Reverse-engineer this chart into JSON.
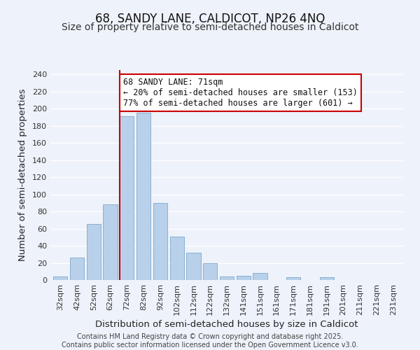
{
  "title": "68, SANDY LANE, CALDICOT, NP26 4NQ",
  "subtitle": "Size of property relative to semi-detached houses in Caldicot",
  "xlabel": "Distribution of semi-detached houses by size in Caldicot",
  "ylabel": "Number of semi-detached properties",
  "bar_labels": [
    "32sqm",
    "42sqm",
    "52sqm",
    "62sqm",
    "72sqm",
    "82sqm",
    "92sqm",
    "102sqm",
    "112sqm",
    "122sqm",
    "132sqm",
    "141sqm",
    "151sqm",
    "161sqm",
    "171sqm",
    "181sqm",
    "191sqm",
    "201sqm",
    "211sqm",
    "221sqm",
    "231sqm"
  ],
  "bar_values": [
    4,
    26,
    65,
    88,
    191,
    195,
    90,
    51,
    32,
    20,
    4,
    5,
    8,
    0,
    3,
    0,
    3,
    0,
    0,
    0,
    0
  ],
  "bar_color": "#b8d0ea",
  "bar_edge_color": "#8ab0d0",
  "highlight_line_color": "#cc0000",
  "annotation_line1": "68 SANDY LANE: 71sqm",
  "annotation_line2": "← 20% of semi-detached houses are smaller (153)",
  "annotation_line3": "77% of semi-detached houses are larger (601) →",
  "annotation_box_color": "#ffffff",
  "annotation_box_edge_color": "#cc0000",
  "yticks": [
    0,
    20,
    40,
    60,
    80,
    100,
    120,
    140,
    160,
    180,
    200,
    220,
    240
  ],
  "ylim": [
    0,
    245
  ],
  "footer_line1": "Contains HM Land Registry data © Crown copyright and database right 2025.",
  "footer_line2": "Contains public sector information licensed under the Open Government Licence v3.0.",
  "background_color": "#eef2fa",
  "grid_color": "#ffffff",
  "title_fontsize": 12,
  "subtitle_fontsize": 10,
  "axis_label_fontsize": 9.5,
  "tick_fontsize": 8,
  "annotation_fontsize": 8.5,
  "footer_fontsize": 7
}
